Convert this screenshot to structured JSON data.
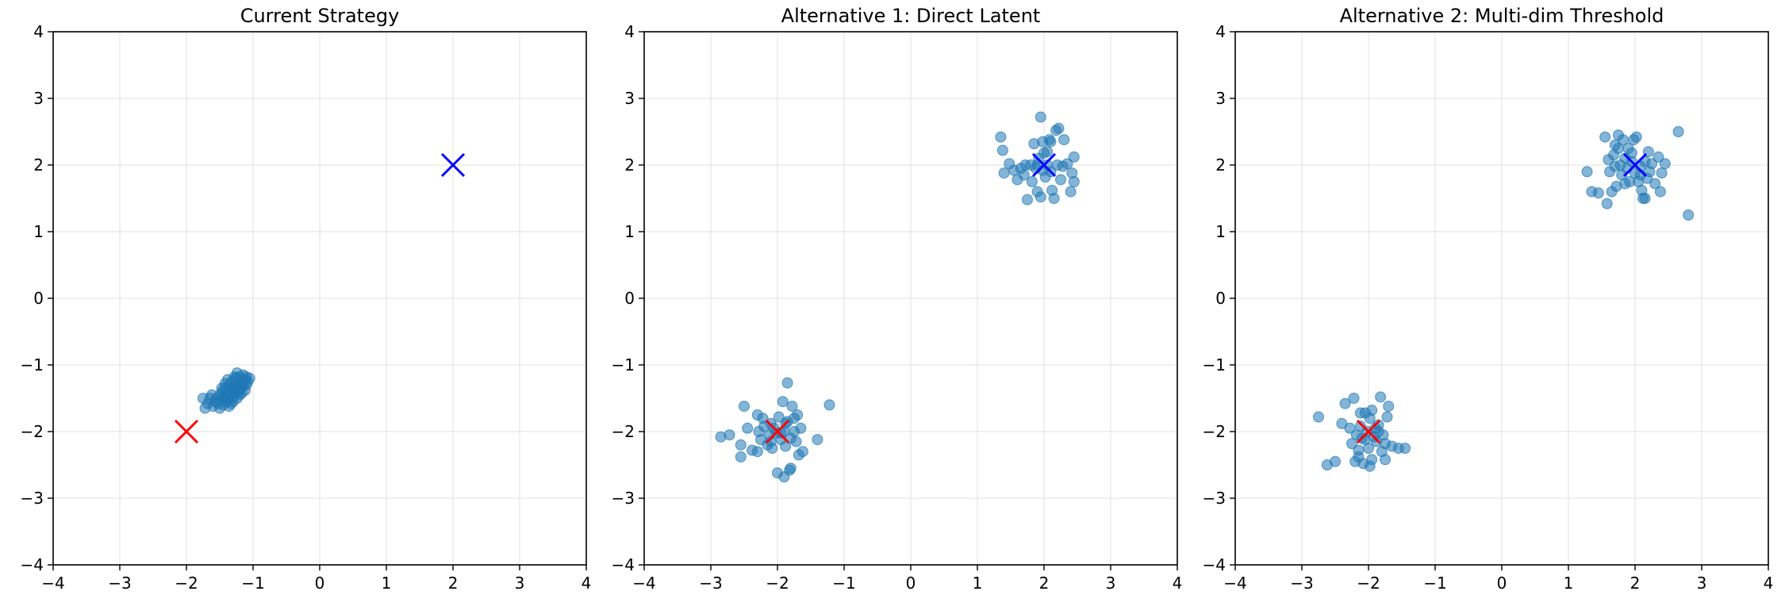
{
  "chart_data": [
    {
      "type": "scatter",
      "title": "Current Strategy",
      "xlabel": "",
      "ylabel": "",
      "xlim": [
        -4,
        4
      ],
      "ylim": [
        -4,
        4
      ],
      "xticks": [
        -4,
        -3,
        -2,
        -1,
        0,
        1,
        2,
        3,
        4
      ],
      "yticks": [
        -4,
        -3,
        -2,
        -1,
        0,
        1,
        2,
        3,
        4
      ],
      "xtick_labels": [
        "−4",
        "−3",
        "−2",
        "−1",
        "0",
        "1",
        "2",
        "3",
        "4"
      ],
      "ytick_labels": [
        "−4",
        "−3",
        "−2",
        "−1",
        "0",
        "1",
        "2",
        "3",
        "4"
      ],
      "grid": true,
      "series": [
        {
          "marker": "circle",
          "color": "#1f77b4",
          "opacity": 0.55,
          "points": [
            [
              -1.65,
              -1.5
            ],
            [
              -1.6,
              -1.62
            ],
            [
              -1.58,
              -1.55
            ],
            [
              -1.55,
              -1.5
            ],
            [
              -1.52,
              -1.58
            ],
            [
              -1.5,
              -1.45
            ],
            [
              -1.48,
              -1.52
            ],
            [
              -1.46,
              -1.4
            ],
            [
              -1.45,
              -1.6
            ],
            [
              -1.44,
              -1.48
            ],
            [
              -1.42,
              -1.35
            ],
            [
              -1.4,
              -1.55
            ],
            [
              -1.4,
              -1.42
            ],
            [
              -1.38,
              -1.5
            ],
            [
              -1.36,
              -1.3
            ],
            [
              -1.35,
              -1.45
            ],
            [
              -1.34,
              -1.38
            ],
            [
              -1.33,
              -1.58
            ],
            [
              -1.32,
              -1.25
            ],
            [
              -1.3,
              -1.48
            ],
            [
              -1.3,
              -1.35
            ],
            [
              -1.28,
              -1.42
            ],
            [
              -1.27,
              -1.3
            ],
            [
              -1.26,
              -1.2
            ],
            [
              -1.25,
              -1.38
            ],
            [
              -1.24,
              -1.5
            ],
            [
              -1.22,
              -1.28
            ],
            [
              -1.2,
              -1.35
            ],
            [
              -1.2,
              -1.18
            ],
            [
              -1.18,
              -1.25
            ],
            [
              -1.17,
              -1.42
            ],
            [
              -1.15,
              -1.15
            ],
            [
              -1.14,
              -1.3
            ],
            [
              -1.12,
              -1.22
            ],
            [
              -1.1,
              -1.18
            ],
            [
              -1.08,
              -1.25
            ],
            [
              -1.05,
              -1.2
            ],
            [
              -1.72,
              -1.65
            ],
            [
              -1.68,
              -1.58
            ],
            [
              -1.62,
              -1.45
            ],
            [
              -1.5,
              -1.65
            ],
            [
              -1.42,
              -1.28
            ],
            [
              -1.36,
              -1.62
            ],
            [
              -1.3,
              -1.55
            ],
            [
              -1.24,
              -1.12
            ],
            [
              -1.2,
              -1.45
            ],
            [
              -1.16,
              -1.32
            ],
            [
              -1.12,
              -1.38
            ],
            [
              -1.75,
              -1.5
            ],
            [
              -1.47,
              -1.35
            ],
            [
              -1.38,
              -1.22
            ],
            [
              -1.28,
              -1.18
            ],
            [
              -1.22,
              -1.4
            ],
            [
              -1.1,
              -1.3
            ]
          ]
        }
      ],
      "markers": [
        {
          "x": -2,
          "y": -2,
          "marker": "x",
          "color": "#ff0000"
        },
        {
          "x": 2,
          "y": 2,
          "marker": "x",
          "color": "#0000ff"
        }
      ]
    },
    {
      "type": "scatter",
      "title": "Alternative 1: Direct Latent",
      "xlabel": "",
      "ylabel": "",
      "xlim": [
        -4,
        4
      ],
      "ylim": [
        -4,
        4
      ],
      "xticks": [
        -4,
        -3,
        -2,
        -1,
        0,
        1,
        2,
        3,
        4
      ],
      "yticks": [
        -4,
        -3,
        -2,
        -1,
        0,
        1,
        2,
        3,
        4
      ],
      "xtick_labels": [
        "−4",
        "−3",
        "−2",
        "−1",
        "0",
        "1",
        "2",
        "3",
        "4"
      ],
      "ytick_labels": [
        "−4",
        "−3",
        "−2",
        "−1",
        "0",
        "1",
        "2",
        "3",
        "4"
      ],
      "grid": true,
      "series": [
        {
          "marker": "circle",
          "color": "#1f77b4",
          "opacity": 0.55,
          "points": [
            [
              -2.85,
              -2.08
            ],
            [
              -2.72,
              -2.05
            ],
            [
              -2.55,
              -2.2
            ],
            [
              -2.55,
              -2.38
            ],
            [
              -2.5,
              -1.62
            ],
            [
              -2.45,
              -1.95
            ],
            [
              -2.38,
              -2.28
            ],
            [
              -2.3,
              -1.75
            ],
            [
              -2.28,
              -2.0
            ],
            [
              -2.25,
              -2.12
            ],
            [
              -2.22,
              -1.8
            ],
            [
              -2.2,
              -1.92
            ],
            [
              -2.15,
              -2.2
            ],
            [
              -2.12,
              -2.05
            ],
            [
              -2.1,
              -1.88
            ],
            [
              -2.08,
              -2.25
            ],
            [
              -2.05,
              -1.95
            ],
            [
              -2.0,
              -2.62
            ],
            [
              -1.98,
              -1.78
            ],
            [
              -1.95,
              -2.12
            ],
            [
              -1.92,
              -1.55
            ],
            [
              -1.9,
              -2.0
            ],
            [
              -1.9,
              -2.68
            ],
            [
              -1.88,
              -2.22
            ],
            [
              -1.85,
              -1.85
            ],
            [
              -1.82,
              -2.58
            ],
            [
              -1.8,
              -2.1
            ],
            [
              -1.78,
              -1.62
            ],
            [
              -1.75,
              -2.0
            ],
            [
              -1.72,
              -2.15
            ],
            [
              -1.7,
              -1.75
            ],
            [
              -1.68,
              -2.35
            ],
            [
              -1.65,
              -1.95
            ],
            [
              -1.62,
              -2.3
            ],
            [
              -1.85,
              -1.27
            ],
            [
              -1.4,
              -2.12
            ],
            [
              -1.22,
              -1.6
            ],
            [
              -2.02,
              -2.02
            ],
            [
              -1.95,
              -2.02
            ],
            [
              -2.1,
              -2.15
            ],
            [
              -1.88,
              -1.88
            ],
            [
              -2.3,
              -2.3
            ],
            [
              -1.75,
              -1.8
            ],
            [
              -1.8,
              -2.55
            ],
            [
              1.35,
              2.42
            ],
            [
              1.38,
              2.22
            ],
            [
              1.4,
              1.88
            ],
            [
              1.48,
              2.02
            ],
            [
              1.55,
              1.92
            ],
            [
              1.6,
              1.78
            ],
            [
              1.65,
              1.95
            ],
            [
              1.7,
              1.85
            ],
            [
              1.75,
              1.48
            ],
            [
              1.8,
              2.0
            ],
            [
              1.82,
              1.75
            ],
            [
              1.85,
              2.32
            ],
            [
              1.88,
              1.95
            ],
            [
              1.9,
              1.6
            ],
            [
              1.92,
              2.1
            ],
            [
              1.95,
              1.52
            ],
            [
              1.95,
              2.72
            ],
            [
              1.98,
              2.35
            ],
            [
              2.0,
              2.18
            ],
            [
              2.02,
              1.82
            ],
            [
              2.05,
              2.0
            ],
            [
              2.08,
              2.38
            ],
            [
              2.1,
              1.9
            ],
            [
              2.12,
              1.62
            ],
            [
              2.15,
              1.5
            ],
            [
              2.18,
              2.52
            ],
            [
              2.2,
              2.0
            ],
            [
              2.22,
              2.55
            ],
            [
              2.25,
              1.78
            ],
            [
              2.3,
              2.38
            ],
            [
              2.35,
              2.02
            ],
            [
              2.4,
              1.6
            ],
            [
              2.42,
              1.88
            ],
            [
              2.45,
              1.75
            ],
            [
              2.45,
              2.12
            ],
            [
              1.72,
              2.0
            ],
            [
              1.9,
              2.0
            ],
            [
              2.05,
              2.2
            ],
            [
              2.1,
              2.35
            ],
            [
              1.98,
              1.92
            ],
            [
              2.28,
              1.98
            ]
          ]
        }
      ],
      "markers": [
        {
          "x": -2,
          "y": -2,
          "marker": "x",
          "color": "#ff0000"
        },
        {
          "x": 2,
          "y": 2,
          "marker": "x",
          "color": "#0000ff"
        }
      ]
    },
    {
      "type": "scatter",
      "title": "Alternative 2: Multi-dim Threshold",
      "xlabel": "",
      "ylabel": "",
      "xlim": [
        -4,
        4
      ],
      "ylim": [
        -4,
        4
      ],
      "xticks": [
        -4,
        -3,
        -2,
        -1,
        0,
        1,
        2,
        3,
        4
      ],
      "yticks": [
        -4,
        -3,
        -2,
        -1,
        0,
        1,
        2,
        3,
        4
      ],
      "xtick_labels": [
        "−4",
        "−3",
        "−2",
        "−1",
        "0",
        "1",
        "2",
        "3",
        "4"
      ],
      "ytick_labels": [
        "−4",
        "−3",
        "−2",
        "−1",
        "0",
        "1",
        "2",
        "3",
        "4"
      ],
      "grid": true,
      "series": [
        {
          "marker": "circle",
          "color": "#1f77b4",
          "opacity": 0.55,
          "points": [
            [
              -2.75,
              -1.78
            ],
            [
              -2.62,
              -2.5
            ],
            [
              -2.5,
              -2.45
            ],
            [
              -2.4,
              -1.88
            ],
            [
              -2.35,
              -1.58
            ],
            [
              -2.28,
              -1.95
            ],
            [
              -2.25,
              -2.18
            ],
            [
              -2.22,
              -1.5
            ],
            [
              -2.2,
              -2.45
            ],
            [
              -2.18,
              -2.05
            ],
            [
              -2.15,
              -2.28
            ],
            [
              -2.12,
              -1.92
            ],
            [
              -2.1,
              -2.1
            ],
            [
              -2.08,
              -2.48
            ],
            [
              -2.05,
              -1.72
            ],
            [
              -2.02,
              -2.0
            ],
            [
              -2.0,
              -2.25
            ],
            [
              -1.98,
              -1.8
            ],
            [
              -1.95,
              -2.42
            ],
            [
              -1.92,
              -2.08
            ],
            [
              -1.9,
              -1.95
            ],
            [
              -1.88,
              -2.15
            ],
            [
              -1.85,
              -2.0
            ],
            [
              -1.82,
              -1.48
            ],
            [
              -1.8,
              -2.3
            ],
            [
              -1.78,
              -2.05
            ],
            [
              -1.75,
              -2.42
            ],
            [
              -1.72,
              -1.78
            ],
            [
              -1.7,
              -1.62
            ],
            [
              -1.65,
              -2.22
            ],
            [
              -1.55,
              -2.25
            ],
            [
              -1.45,
              -2.25
            ],
            [
              -2.12,
              -1.72
            ],
            [
              -1.95,
              -1.68
            ],
            [
              -2.05,
              -2.12
            ],
            [
              -1.85,
              -1.9
            ],
            [
              -2.15,
              -2.38
            ],
            [
              -1.98,
              -2.52
            ],
            [
              -1.75,
              -2.18
            ],
            [
              1.28,
              1.9
            ],
            [
              1.35,
              1.6
            ],
            [
              1.45,
              1.58
            ],
            [
              1.55,
              2.42
            ],
            [
              1.58,
              1.42
            ],
            [
              1.6,
              2.08
            ],
            [
              1.62,
              1.9
            ],
            [
              1.65,
              1.6
            ],
            [
              1.68,
              2.15
            ],
            [
              1.7,
              2.3
            ],
            [
              1.72,
              1.68
            ],
            [
              1.75,
              2.45
            ],
            [
              1.78,
              2.0
            ],
            [
              1.8,
              1.85
            ],
            [
              1.82,
              2.38
            ],
            [
              1.85,
              2.1
            ],
            [
              1.88,
              1.95
            ],
            [
              1.9,
              2.25
            ],
            [
              1.92,
              1.75
            ],
            [
              1.95,
              2.05
            ],
            [
              1.98,
              2.38
            ],
            [
              2.0,
              1.88
            ],
            [
              2.02,
              2.42
            ],
            [
              2.05,
              1.75
            ],
            [
              2.08,
              1.98
            ],
            [
              2.1,
              1.62
            ],
            [
              2.12,
              1.5
            ],
            [
              2.15,
              2.05
            ],
            [
              2.18,
              1.8
            ],
            [
              2.2,
              2.2
            ],
            [
              2.22,
              1.9
            ],
            [
              2.25,
              2.02
            ],
            [
              2.3,
              1.72
            ],
            [
              2.35,
              2.12
            ],
            [
              2.38,
              1.6
            ],
            [
              2.4,
              1.88
            ],
            [
              2.45,
              2.02
            ],
            [
              2.65,
              2.5
            ],
            [
              2.8,
              1.25
            ],
            [
              1.75,
              2.25
            ],
            [
              1.85,
              1.72
            ],
            [
              2.08,
              1.85
            ],
            [
              1.95,
              2.18
            ],
            [
              2.15,
              1.5
            ],
            [
              1.7,
              1.98
            ]
          ]
        }
      ],
      "markers": [
        {
          "x": -2,
          "y": -2,
          "marker": "x",
          "color": "#ff0000"
        },
        {
          "x": 2,
          "y": 2,
          "marker": "x",
          "color": "#0000ff"
        }
      ]
    }
  ]
}
